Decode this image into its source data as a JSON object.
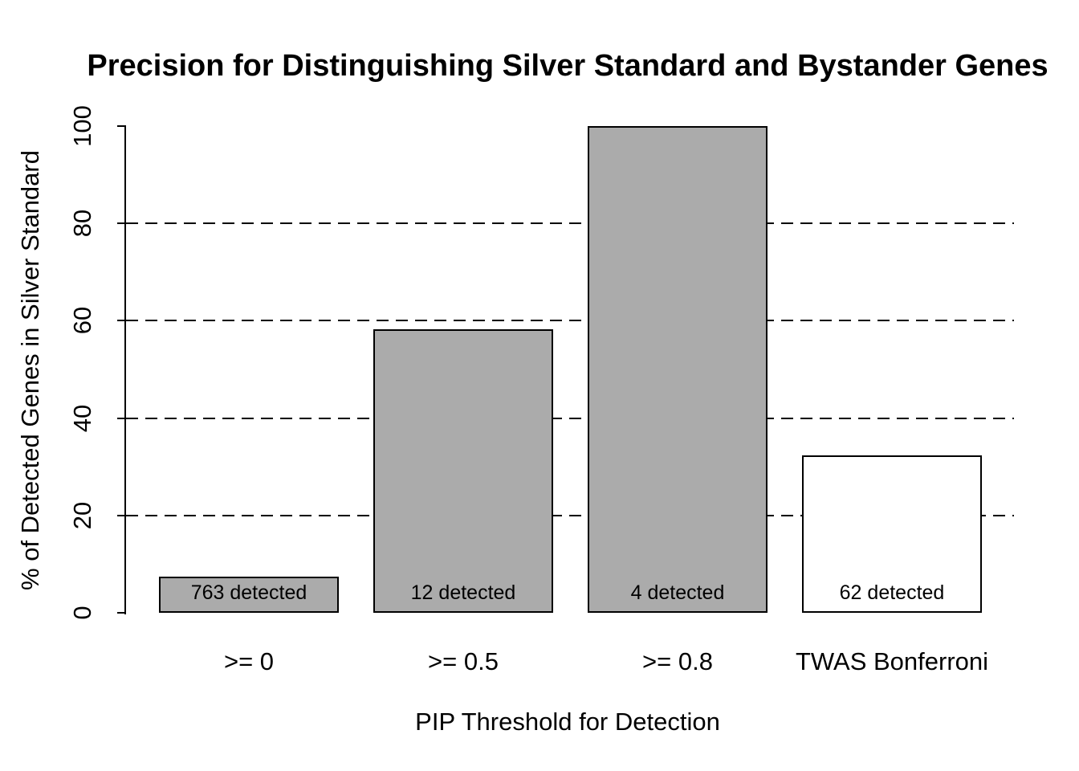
{
  "chart_data": {
    "type": "bar",
    "title": "Precision for Distinguishing Silver Standard and Bystander Genes",
    "xlabel": "PIP Threshold for Detection",
    "ylabel": "% of Detected Genes in Silver Standard",
    "categories": [
      ">= 0",
      ">= 0.5",
      ">= 0.8",
      "TWAS Bonferroni"
    ],
    "values": [
      7.5,
      58.3,
      100,
      32.3
    ],
    "bar_labels": [
      "763 detected",
      "12 detected",
      "4 detected",
      "62 detected"
    ],
    "bar_fill_colors": [
      "#ababab",
      "#ababab",
      "#ababab",
      "#ffffff"
    ],
    "bar_border_color": "#000000",
    "yticks": [
      "0",
      "20",
      "40",
      "60",
      "80",
      "100"
    ],
    "ytick_values": [
      0,
      20,
      40,
      60,
      80,
      100
    ],
    "gridline_values": [
      20,
      40,
      60,
      80
    ],
    "grid_style": "dashed",
    "ylim": [
      0,
      100
    ],
    "legend_position": "none",
    "text_color": "#000000",
    "background_color": "#ffffff"
  }
}
